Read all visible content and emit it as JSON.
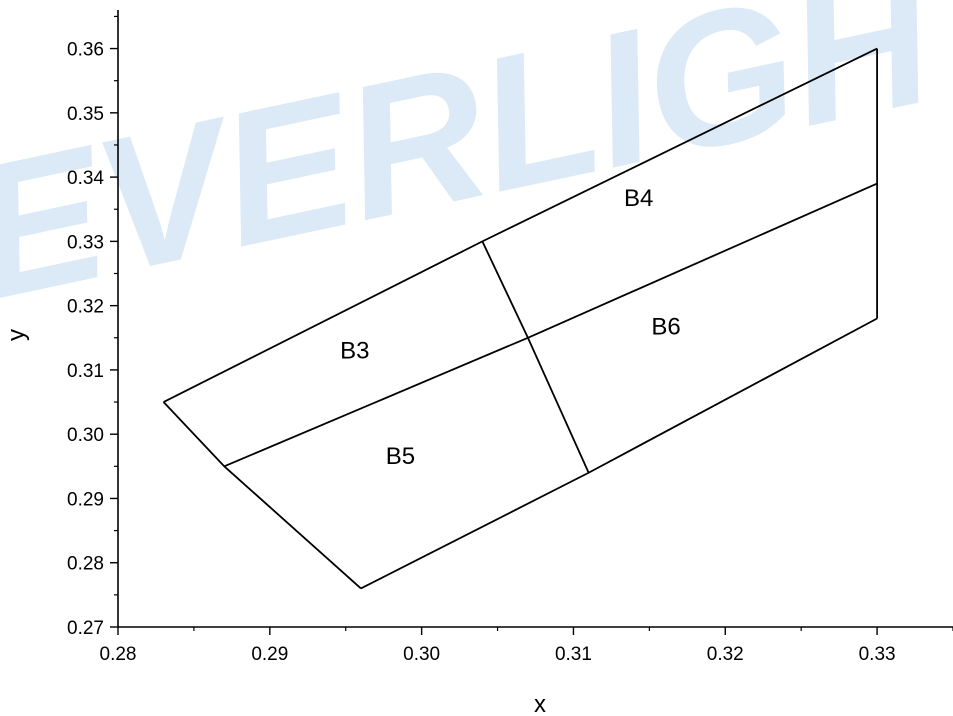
{
  "watermark": {
    "text": "EVERLIGHT",
    "color": "#dbeaf6"
  },
  "chart_data": {
    "type": "line",
    "title": "",
    "xlabel": "x",
    "ylabel": "y",
    "xlim": [
      0.28,
      0.335
    ],
    "ylim": [
      0.27,
      0.366
    ],
    "x_ticks": [
      0.28,
      0.29,
      0.3,
      0.31,
      0.32,
      0.33
    ],
    "x_tick_labels": [
      "0.28",
      "0.29",
      "0.30",
      "0.31",
      "0.32",
      "0.33"
    ],
    "y_ticks": [
      0.27,
      0.28,
      0.29,
      0.3,
      0.31,
      0.32,
      0.33,
      0.34,
      0.35,
      0.36
    ],
    "y_tick_labels": [
      "0.27",
      "0.28",
      "0.29",
      "0.30",
      "0.31",
      "0.32",
      "0.33",
      "0.34",
      "0.35",
      "0.36"
    ],
    "grid": false,
    "line_color": "#000000",
    "series": [
      {
        "x": [
          0.283,
          0.304,
          0.33
        ],
        "y": [
          0.305,
          0.33,
          0.36
        ]
      },
      {
        "x": [
          0.287,
          0.307,
          0.33
        ],
        "y": [
          0.295,
          0.315,
          0.339
        ]
      },
      {
        "x": [
          0.296,
          0.311,
          0.33
        ],
        "y": [
          0.276,
          0.294,
          0.318
        ]
      },
      {
        "x": [
          0.283,
          0.287,
          0.296
        ],
        "y": [
          0.305,
          0.295,
          0.276
        ]
      },
      {
        "x": [
          0.304,
          0.307,
          0.311
        ],
        "y": [
          0.33,
          0.315,
          0.294
        ]
      },
      {
        "x": [
          0.33,
          0.33
        ],
        "y": [
          0.318,
          0.36
        ]
      }
    ],
    "annotations": [
      {
        "text": "B3",
        "x": 0.2956,
        "y": 0.3118
      },
      {
        "text": "B4",
        "x": 0.3143,
        "y": 0.3355
      },
      {
        "text": "B5",
        "x": 0.2986,
        "y": 0.2954
      },
      {
        "text": "B6",
        "x": 0.3161,
        "y": 0.3155
      }
    ]
  }
}
